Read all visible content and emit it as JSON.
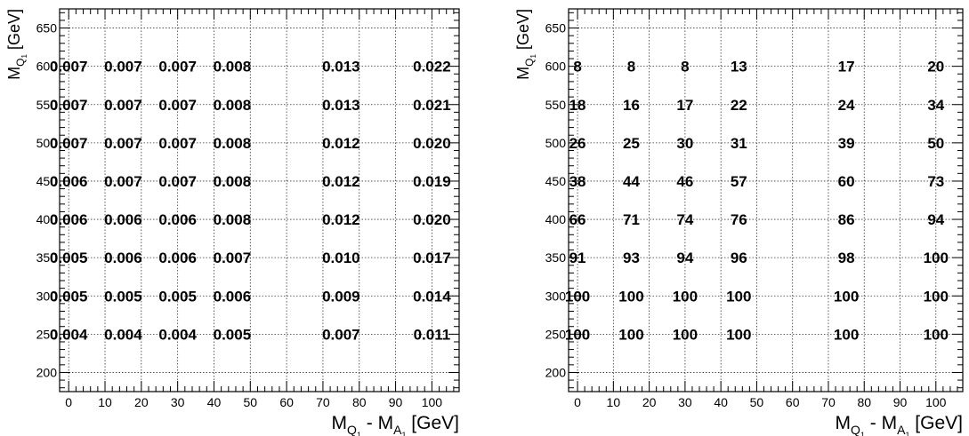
{
  "chart_data": [
    {
      "type": "table",
      "x_label": {
        "main": "M",
        "sub_q": "Q",
        "sub_q_idx": "1",
        "middle": " - M",
        "sub_a": "A",
        "sub_a_idx": "1",
        "unit": " [GeV]"
      },
      "y_label": {
        "main": "M",
        "sub_q": "Q",
        "sub_q_idx": "1",
        "unit": " [GeV]"
      },
      "xlim": [
        -2.5,
        107.5
      ],
      "ylim": [
        175,
        675
      ],
      "x_ticks": [
        "0",
        "10",
        "20",
        "30",
        "40",
        "50",
        "60",
        "70",
        "80",
        "90",
        "100"
      ],
      "y_ticks": [
        "200",
        "250",
        "300",
        "350",
        "400",
        "450",
        "500",
        "550",
        "600",
        "650"
      ],
      "x": [
        0,
        15,
        30,
        45,
        75,
        100
      ],
      "y": [
        600,
        550,
        500,
        450,
        400,
        350,
        300,
        250
      ],
      "cells": [
        [
          "0.007",
          "0.007",
          "0.007",
          "0.008",
          "0.013",
          "0.022"
        ],
        [
          "0.007",
          "0.007",
          "0.007",
          "0.008",
          "0.013",
          "0.021"
        ],
        [
          "0.007",
          "0.007",
          "0.007",
          "0.008",
          "0.012",
          "0.020"
        ],
        [
          "0.006",
          "0.007",
          "0.007",
          "0.008",
          "0.012",
          "0.019"
        ],
        [
          "0.006",
          "0.006",
          "0.006",
          "0.008",
          "0.012",
          "0.020"
        ],
        [
          "0.005",
          "0.006",
          "0.006",
          "0.007",
          "0.010",
          "0.017"
        ],
        [
          "0.005",
          "0.005",
          "0.005",
          "0.006",
          "0.009",
          "0.014"
        ],
        [
          "0.004",
          "0.004",
          "0.004",
          "0.005",
          "0.007",
          "0.011"
        ]
      ],
      "grid": true
    },
    {
      "type": "table",
      "x_label": {
        "main": "M",
        "sub_q": "Q",
        "sub_q_idx": "1",
        "middle": " - M",
        "sub_a": "A",
        "sub_a_idx": "1",
        "unit": " [GeV]"
      },
      "y_label": {
        "main": "M",
        "sub_q": "Q",
        "sub_q_idx": "1",
        "unit": " [GeV]"
      },
      "xlim": [
        -2.5,
        107.5
      ],
      "ylim": [
        175,
        675
      ],
      "x_ticks": [
        "0",
        "10",
        "20",
        "30",
        "40",
        "50",
        "60",
        "70",
        "80",
        "90",
        "100"
      ],
      "y_ticks": [
        "200",
        "250",
        "300",
        "350",
        "400",
        "450",
        "500",
        "550",
        "600",
        "650"
      ],
      "x": [
        0,
        15,
        30,
        45,
        75,
        100
      ],
      "y": [
        600,
        550,
        500,
        450,
        400,
        350,
        300,
        250
      ],
      "cells": [
        [
          "8",
          "8",
          "8",
          "13",
          "17",
          "20"
        ],
        [
          "18",
          "16",
          "17",
          "22",
          "24",
          "34"
        ],
        [
          "26",
          "25",
          "30",
          "31",
          "39",
          "50"
        ],
        [
          "38",
          "44",
          "46",
          "57",
          "60",
          "73"
        ],
        [
          "66",
          "71",
          "74",
          "76",
          "86",
          "94"
        ],
        [
          "91",
          "93",
          "94",
          "96",
          "98",
          "100"
        ],
        [
          "100",
          "100",
          "100",
          "100",
          "100",
          "100"
        ],
        [
          "100",
          "100",
          "100",
          "100",
          "100",
          "100"
        ]
      ],
      "grid": true
    }
  ]
}
